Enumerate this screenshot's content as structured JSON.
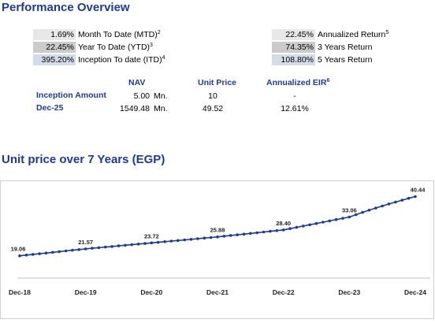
{
  "header": {
    "title": "Performance Overview"
  },
  "performance": {
    "left": [
      {
        "value": "1.69%",
        "label": "Month To Date (MTD)",
        "sup": "2"
      },
      {
        "value": "22.45%",
        "label": "Year To Date (YTD)",
        "sup": "3"
      },
      {
        "value": "395.20%",
        "label": "Inception To date (ITD)",
        "sup": "4"
      }
    ],
    "right": [
      {
        "value": "22.45%",
        "label": "Annualized Return",
        "sup": "5"
      },
      {
        "value": "74.35%",
        "label": "3 Years Return",
        "sup": ""
      },
      {
        "value": "108.80%",
        "label": "5 Years Return",
        "sup": ""
      }
    ]
  },
  "nav_table": {
    "headers": {
      "nav": "NAV",
      "unit_price": "Unit Price",
      "eir": "Annualized EIR",
      "eir_sup": "6"
    },
    "rows": [
      {
        "label": "Inception Amount",
        "nav": "5.00",
        "unit": "Mn.",
        "unit_price": "10",
        "eir": "-"
      },
      {
        "label": "Dec-25",
        "nav": "1549.48",
        "unit": "Mn.",
        "unit_price": "49.52",
        "eir": "12.61%"
      }
    ]
  },
  "chart_title": "Unit price over 7 Years (EGP)",
  "chart_data": {
    "type": "line",
    "categories": [
      "Dec-18",
      "Dec-19",
      "Dec-20",
      "Dec-21",
      "Dec-22",
      "Dec-23",
      "Dec-24"
    ],
    "values": [
      19.06,
      21.57,
      23.72,
      25.88,
      28.4,
      33.06,
      40.44
    ],
    "value_labels": [
      "19.06",
      "21.57",
      "23.72",
      "25.88",
      "28.40",
      "33.06",
      "40.44"
    ],
    "line_color": "#1f3a93",
    "grid": false,
    "ylim": [
      15,
      42
    ]
  }
}
